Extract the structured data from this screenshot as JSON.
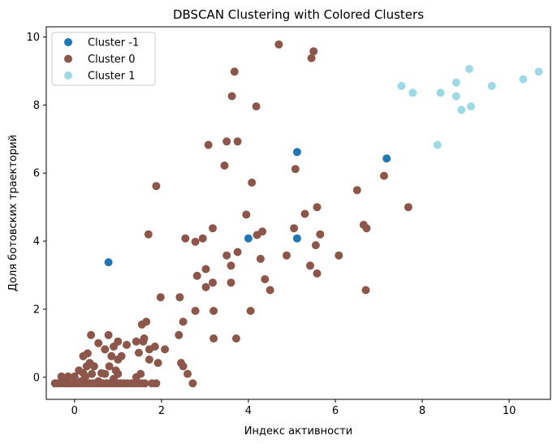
{
  "chart_data": {
    "type": "scatter",
    "title": "DBSCAN Clustering with Colored Clusters",
    "xlabel": "Индекс активности",
    "ylabel": "Доля ботовских траекторий",
    "xlim": [
      -0.65,
      10.95
    ],
    "ylim": [
      -0.65,
      10.3
    ],
    "xticks": [
      0,
      2,
      4,
      6,
      8,
      10
    ],
    "yticks": [
      0,
      2,
      4,
      6,
      8,
      10
    ],
    "grid": false,
    "legend_position": "top-left",
    "series": [
      {
        "name": "Cluster -1",
        "color": "#1f77b4",
        "points": [
          [
            0.78,
            3.38
          ],
          [
            4.0,
            4.08
          ],
          [
            5.12,
            6.62
          ],
          [
            5.12,
            4.08
          ],
          [
            7.18,
            6.43
          ]
        ]
      },
      {
        "name": "Cluster 0",
        "color": "#8c564b",
        "points": [
          [
            4.7,
            9.78
          ],
          [
            5.5,
            9.58
          ],
          [
            5.45,
            9.38
          ],
          [
            3.68,
            8.98
          ],
          [
            3.62,
            8.26
          ],
          [
            4.18,
            7.96
          ],
          [
            3.08,
            6.83
          ],
          [
            3.5,
            6.93
          ],
          [
            3.75,
            6.93
          ],
          [
            3.45,
            6.22
          ],
          [
            5.08,
            6.12
          ],
          [
            7.12,
            5.92
          ],
          [
            4.08,
            5.72
          ],
          [
            1.88,
            5.62
          ],
          [
            6.5,
            5.5
          ],
          [
            5.58,
            5.0
          ],
          [
            7.68,
            5.0
          ],
          [
            5.3,
            4.8
          ],
          [
            3.95,
            4.78
          ],
          [
            6.65,
            4.48
          ],
          [
            6.72,
            4.38
          ],
          [
            5.05,
            4.38
          ],
          [
            3.18,
            4.38
          ],
          [
            4.32,
            4.28
          ],
          [
            5.65,
            4.2
          ],
          [
            1.7,
            4.2
          ],
          [
            4.2,
            4.18
          ],
          [
            2.55,
            4.08
          ],
          [
            2.95,
            4.08
          ],
          [
            2.78,
            3.98
          ],
          [
            5.55,
            3.88
          ],
          [
            3.75,
            3.68
          ],
          [
            3.5,
            3.58
          ],
          [
            4.88,
            3.58
          ],
          [
            6.08,
            3.58
          ],
          [
            4.28,
            3.48
          ],
          [
            3.6,
            3.28
          ],
          [
            5.42,
            3.28
          ],
          [
            3.02,
            3.18
          ],
          [
            5.58,
            3.05
          ],
          [
            2.82,
            2.98
          ],
          [
            4.38,
            2.88
          ],
          [
            3.18,
            2.78
          ],
          [
            3.6,
            2.78
          ],
          [
            3.02,
            2.65
          ],
          [
            4.5,
            2.56
          ],
          [
            6.7,
            2.56
          ],
          [
            2.42,
            2.35
          ],
          [
            1.98,
            2.35
          ],
          [
            3.2,
            1.95
          ],
          [
            4.05,
            1.95
          ],
          [
            2.78,
            1.95
          ],
          [
            2.5,
            1.63
          ],
          [
            1.65,
            1.63
          ],
          [
            1.55,
            1.55
          ],
          [
            2.4,
            1.24
          ],
          [
            0.38,
            1.24
          ],
          [
            0.78,
            1.24
          ],
          [
            1.6,
            1.14
          ],
          [
            3.72,
            1.14
          ],
          [
            3.2,
            1.14
          ],
          [
            1.42,
            1.05
          ],
          [
            1.58,
            1.05
          ],
          [
            1.0,
            1.05
          ],
          [
            0.55,
            1.0
          ],
          [
            1.2,
            0.95
          ],
          [
            0.9,
            0.9
          ],
          [
            1.85,
            0.9
          ],
          [
            0.7,
            0.82
          ],
          [
            2.08,
            0.82
          ],
          [
            1.72,
            0.82
          ],
          [
            1.48,
            0.72
          ],
          [
            0.3,
            0.7
          ],
          [
            0.85,
            0.62
          ],
          [
            1.08,
            0.62
          ],
          [
            0.2,
            0.62
          ],
          [
            1.0,
            0.52
          ],
          [
            1.72,
            0.52
          ],
          [
            2.45,
            0.42
          ],
          [
            2.5,
            0.32
          ],
          [
            1.92,
            0.42
          ],
          [
            0.35,
            0.42
          ],
          [
            0.45,
            0.32
          ],
          [
            0.28,
            0.32
          ],
          [
            0.8,
            0.32
          ],
          [
            0.95,
            0.2
          ],
          [
            0.1,
            0.2
          ],
          [
            0.2,
            0.12
          ],
          [
            0.25,
            0.02
          ],
          [
            0.62,
            0.12
          ],
          [
            0.0,
            0.02
          ],
          [
            -0.15,
            0.02
          ],
          [
            -0.3,
            0.02
          ],
          [
            0.7,
            0.1
          ],
          [
            1.0,
            0.1
          ],
          [
            1.52,
            0.1
          ],
          [
            0.4,
            0.1
          ],
          [
            1.42,
            0.0
          ],
          [
            2.6,
            0.1
          ],
          [
            -0.25,
            -0.1
          ],
          [
            0.15,
            -0.12
          ],
          [
            0.55,
            -0.12
          ],
          [
            0.9,
            -0.05
          ],
          [
            -0.45,
            -0.18
          ],
          [
            -0.38,
            -0.18
          ],
          [
            -0.3,
            -0.18
          ],
          [
            -0.22,
            -0.18
          ],
          [
            -0.14,
            -0.18
          ],
          [
            -0.06,
            -0.18
          ],
          [
            0.02,
            -0.18
          ],
          [
            0.1,
            -0.18
          ],
          [
            0.18,
            -0.18
          ],
          [
            0.26,
            -0.18
          ],
          [
            0.34,
            -0.18
          ],
          [
            0.42,
            -0.18
          ],
          [
            0.5,
            -0.18
          ],
          [
            0.58,
            -0.18
          ],
          [
            0.66,
            -0.18
          ],
          [
            0.74,
            -0.18
          ],
          [
            0.82,
            -0.18
          ],
          [
            0.9,
            -0.18
          ],
          [
            0.98,
            -0.18
          ],
          [
            1.06,
            -0.18
          ],
          [
            1.14,
            -0.18
          ],
          [
            1.22,
            -0.18
          ],
          [
            1.3,
            -0.18
          ],
          [
            1.38,
            -0.18
          ],
          [
            1.46,
            -0.18
          ],
          [
            1.54,
            -0.18
          ],
          [
            1.62,
            -0.18
          ],
          [
            1.78,
            -0.18
          ],
          [
            1.88,
            -0.18
          ],
          [
            2.72,
            -0.18
          ]
        ]
      },
      {
        "name": "Cluster 1",
        "color": "#9edae5",
        "points": [
          [
            9.08,
            9.06
          ],
          [
            10.68,
            8.98
          ],
          [
            10.32,
            8.76
          ],
          [
            8.78,
            8.66
          ],
          [
            7.52,
            8.56
          ],
          [
            9.6,
            8.56
          ],
          [
            7.78,
            8.36
          ],
          [
            8.42,
            8.36
          ],
          [
            8.78,
            8.26
          ],
          [
            9.12,
            7.96
          ],
          [
            8.9,
            7.86
          ],
          [
            8.35,
            6.83
          ]
        ]
      }
    ]
  }
}
